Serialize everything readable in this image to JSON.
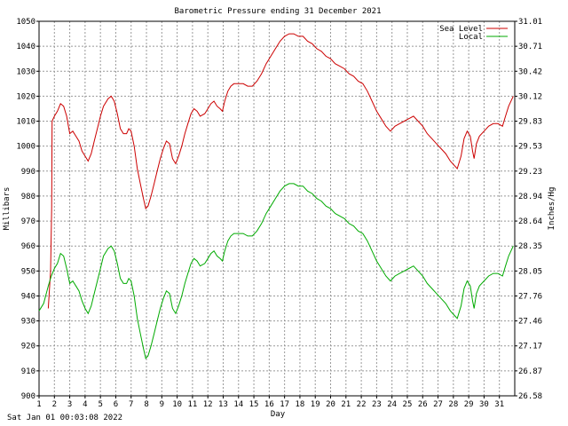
{
  "chart_data": {
    "type": "line",
    "title": "Barometric Pressure ending 31 December 2021",
    "xlabel": "Day",
    "ylabel": "Millibars",
    "ylabel_right": "Inches/Hg",
    "x_ticks": [
      "1",
      "2",
      "3",
      "4",
      "5",
      "6",
      "7",
      "8",
      "9",
      "10",
      "11",
      "12",
      "13",
      "14",
      "15",
      "16",
      "17",
      "18",
      "19",
      "20",
      "21",
      "22",
      "23",
      "24",
      "25",
      "26",
      "27",
      "28",
      "29",
      "30",
      "31"
    ],
    "xlim": [
      1,
      32
    ],
    "ylim": [
      900,
      1050
    ],
    "y_ticks": [
      "900",
      "910",
      "920",
      "930",
      "940",
      "950",
      "960",
      "970",
      "980",
      "990",
      "1000",
      "1010",
      "1020",
      "1030",
      "1040",
      "1050"
    ],
    "y_ticks_right": [
      "26.58",
      "26.87",
      "27.17",
      "27.46",
      "27.76",
      "28.05",
      "28.35",
      "28.64",
      "28.94",
      "29.23",
      "29.53",
      "29.83",
      "30.12",
      "30.42",
      "30.71",
      "31.01"
    ],
    "grid": true,
    "legend": "top-right",
    "series": [
      {
        "name": "Sea Level",
        "color": "#cc0000",
        "points": [
          [
            1.6,
            935
          ],
          [
            1.75,
            950
          ],
          [
            1.82,
            975
          ],
          [
            1.85,
            1010
          ],
          [
            2.0,
            1012
          ],
          [
            2.2,
            1014
          ],
          [
            2.4,
            1017
          ],
          [
            2.6,
            1016
          ],
          [
            2.8,
            1012
          ],
          [
            3.0,
            1005
          ],
          [
            3.2,
            1006
          ],
          [
            3.4,
            1004
          ],
          [
            3.6,
            1002
          ],
          [
            3.8,
            998
          ],
          [
            4.0,
            996
          ],
          [
            4.2,
            994
          ],
          [
            4.4,
            997
          ],
          [
            4.6,
            1002
          ],
          [
            4.8,
            1007
          ],
          [
            5.0,
            1012
          ],
          [
            5.2,
            1016
          ],
          [
            5.5,
            1019
          ],
          [
            5.7,
            1020
          ],
          [
            5.9,
            1018
          ],
          [
            6.1,
            1013
          ],
          [
            6.3,
            1007
          ],
          [
            6.5,
            1005
          ],
          [
            6.7,
            1005
          ],
          [
            6.85,
            1007
          ],
          [
            7.0,
            1006
          ],
          [
            7.2,
            1000
          ],
          [
            7.4,
            991
          ],
          [
            7.6,
            985
          ],
          [
            7.8,
            979
          ],
          [
            7.95,
            975
          ],
          [
            8.1,
            976
          ],
          [
            8.3,
            980
          ],
          [
            8.5,
            985
          ],
          [
            8.7,
            990
          ],
          [
            8.9,
            995
          ],
          [
            9.1,
            999
          ],
          [
            9.3,
            1002
          ],
          [
            9.5,
            1001
          ],
          [
            9.7,
            995
          ],
          [
            9.9,
            993
          ],
          [
            10.1,
            996
          ],
          [
            10.3,
            1000
          ],
          [
            10.5,
            1005
          ],
          [
            10.7,
            1009
          ],
          [
            10.9,
            1013
          ],
          [
            11.1,
            1015
          ],
          [
            11.3,
            1014
          ],
          [
            11.5,
            1012
          ],
          [
            11.8,
            1013
          ],
          [
            12.0,
            1015
          ],
          [
            12.2,
            1017
          ],
          [
            12.4,
            1018
          ],
          [
            12.6,
            1016
          ],
          [
            12.8,
            1015
          ],
          [
            12.95,
            1014
          ],
          [
            13.1,
            1018
          ],
          [
            13.3,
            1022
          ],
          [
            13.5,
            1024
          ],
          [
            13.7,
            1025
          ],
          [
            14.0,
            1025
          ],
          [
            14.3,
            1025
          ],
          [
            14.6,
            1024
          ],
          [
            14.9,
            1024
          ],
          [
            15.2,
            1026
          ],
          [
            15.5,
            1029
          ],
          [
            15.8,
            1033
          ],
          [
            16.1,
            1036
          ],
          [
            16.4,
            1039
          ],
          [
            16.7,
            1042
          ],
          [
            17.0,
            1044
          ],
          [
            17.3,
            1045
          ],
          [
            17.6,
            1045
          ],
          [
            17.9,
            1044
          ],
          [
            18.2,
            1044
          ],
          [
            18.5,
            1042
          ],
          [
            18.8,
            1041
          ],
          [
            19.1,
            1039
          ],
          [
            19.4,
            1038
          ],
          [
            19.7,
            1036
          ],
          [
            20.0,
            1035
          ],
          [
            20.3,
            1033
          ],
          [
            20.6,
            1032
          ],
          [
            20.9,
            1031
          ],
          [
            21.2,
            1029
          ],
          [
            21.5,
            1028
          ],
          [
            21.8,
            1026
          ],
          [
            22.1,
            1025
          ],
          [
            22.4,
            1022
          ],
          [
            22.7,
            1018
          ],
          [
            23.0,
            1014
          ],
          [
            23.3,
            1011
          ],
          [
            23.6,
            1008
          ],
          [
            23.9,
            1006
          ],
          [
            24.2,
            1008
          ],
          [
            24.5,
            1009
          ],
          [
            24.8,
            1010
          ],
          [
            25.1,
            1011
          ],
          [
            25.4,
            1012
          ],
          [
            25.7,
            1010
          ],
          [
            26.0,
            1008
          ],
          [
            26.3,
            1005
          ],
          [
            26.6,
            1003
          ],
          [
            26.9,
            1001
          ],
          [
            27.2,
            999
          ],
          [
            27.5,
            997
          ],
          [
            27.8,
            994
          ],
          [
            28.1,
            992
          ],
          [
            28.25,
            991
          ],
          [
            28.5,
            996
          ],
          [
            28.7,
            1003
          ],
          [
            28.9,
            1006
          ],
          [
            29.1,
            1004
          ],
          [
            29.25,
            998
          ],
          [
            29.35,
            995
          ],
          [
            29.5,
            1001
          ],
          [
            29.7,
            1004
          ],
          [
            30.0,
            1006
          ],
          [
            30.3,
            1008
          ],
          [
            30.6,
            1009
          ],
          [
            30.9,
            1009
          ],
          [
            31.2,
            1008
          ],
          [
            31.4,
            1012
          ],
          [
            31.6,
            1016
          ],
          [
            31.9,
            1020
          ]
        ]
      },
      {
        "name": "Local",
        "color": "#00aa00",
        "points": [
          [
            1.0,
            934
          ],
          [
            1.3,
            937
          ],
          [
            1.6,
            944
          ],
          [
            1.8,
            948
          ],
          [
            2.0,
            951
          ],
          [
            2.2,
            953
          ],
          [
            2.4,
            957
          ],
          [
            2.6,
            956
          ],
          [
            2.8,
            951
          ],
          [
            3.0,
            945
          ],
          [
            3.2,
            946
          ],
          [
            3.4,
            944
          ],
          [
            3.6,
            942
          ],
          [
            3.8,
            938
          ],
          [
            4.0,
            935
          ],
          [
            4.2,
            933
          ],
          [
            4.4,
            936
          ],
          [
            4.6,
            941
          ],
          [
            4.8,
            946
          ],
          [
            5.0,
            951
          ],
          [
            5.2,
            956
          ],
          [
            5.5,
            959
          ],
          [
            5.7,
            960
          ],
          [
            5.9,
            958
          ],
          [
            6.1,
            953
          ],
          [
            6.3,
            947
          ],
          [
            6.5,
            945
          ],
          [
            6.7,
            945
          ],
          [
            6.85,
            947
          ],
          [
            7.0,
            946
          ],
          [
            7.2,
            940
          ],
          [
            7.4,
            931
          ],
          [
            7.6,
            925
          ],
          [
            7.8,
            919
          ],
          [
            7.95,
            915
          ],
          [
            8.1,
            916
          ],
          [
            8.3,
            920
          ],
          [
            8.5,
            925
          ],
          [
            8.7,
            930
          ],
          [
            8.9,
            935
          ],
          [
            9.1,
            939
          ],
          [
            9.3,
            942
          ],
          [
            9.5,
            941
          ],
          [
            9.7,
            935
          ],
          [
            9.9,
            933
          ],
          [
            10.1,
            936
          ],
          [
            10.3,
            940
          ],
          [
            10.5,
            945
          ],
          [
            10.7,
            949
          ],
          [
            10.9,
            953
          ],
          [
            11.1,
            955
          ],
          [
            11.3,
            954
          ],
          [
            11.5,
            952
          ],
          [
            11.8,
            953
          ],
          [
            12.0,
            955
          ],
          [
            12.2,
            957
          ],
          [
            12.4,
            958
          ],
          [
            12.6,
            956
          ],
          [
            12.8,
            955
          ],
          [
            12.95,
            954
          ],
          [
            13.1,
            958
          ],
          [
            13.3,
            962
          ],
          [
            13.5,
            964
          ],
          [
            13.7,
            965
          ],
          [
            14.0,
            965
          ],
          [
            14.3,
            965
          ],
          [
            14.6,
            964
          ],
          [
            14.9,
            964
          ],
          [
            15.2,
            966
          ],
          [
            15.5,
            969
          ],
          [
            15.8,
            973
          ],
          [
            16.1,
            976
          ],
          [
            16.4,
            979
          ],
          [
            16.7,
            982
          ],
          [
            17.0,
            984
          ],
          [
            17.3,
            985
          ],
          [
            17.6,
            985
          ],
          [
            17.9,
            984
          ],
          [
            18.2,
            984
          ],
          [
            18.5,
            982
          ],
          [
            18.8,
            981
          ],
          [
            19.1,
            979
          ],
          [
            19.4,
            978
          ],
          [
            19.7,
            976
          ],
          [
            20.0,
            975
          ],
          [
            20.3,
            973
          ],
          [
            20.6,
            972
          ],
          [
            20.9,
            971
          ],
          [
            21.2,
            969
          ],
          [
            21.5,
            968
          ],
          [
            21.8,
            966
          ],
          [
            22.1,
            965
          ],
          [
            22.4,
            962
          ],
          [
            22.7,
            958
          ],
          [
            23.0,
            954
          ],
          [
            23.3,
            951
          ],
          [
            23.6,
            948
          ],
          [
            23.9,
            946
          ],
          [
            24.2,
            948
          ],
          [
            24.5,
            949
          ],
          [
            24.8,
            950
          ],
          [
            25.1,
            951
          ],
          [
            25.4,
            952
          ],
          [
            25.7,
            950
          ],
          [
            26.0,
            948
          ],
          [
            26.3,
            945
          ],
          [
            26.6,
            943
          ],
          [
            26.9,
            941
          ],
          [
            27.2,
            939
          ],
          [
            27.5,
            937
          ],
          [
            27.8,
            934
          ],
          [
            28.1,
            932
          ],
          [
            28.25,
            931
          ],
          [
            28.5,
            936
          ],
          [
            28.7,
            943
          ],
          [
            28.9,
            946
          ],
          [
            29.1,
            944
          ],
          [
            29.25,
            938
          ],
          [
            29.35,
            935
          ],
          [
            29.5,
            941
          ],
          [
            29.7,
            944
          ],
          [
            30.0,
            946
          ],
          [
            30.3,
            948
          ],
          [
            30.6,
            949
          ],
          [
            30.9,
            949
          ],
          [
            31.2,
            948
          ],
          [
            31.4,
            952
          ],
          [
            31.6,
            956
          ],
          [
            31.9,
            960
          ]
        ]
      }
    ]
  },
  "footer": {
    "timestamp": "Sat Jan 01 00:03:08 2022"
  }
}
